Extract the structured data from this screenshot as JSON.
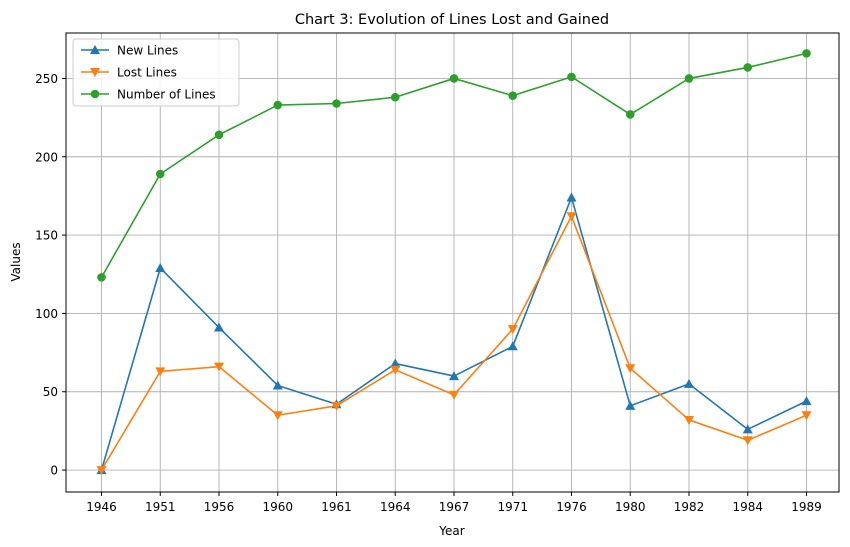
{
  "chart_data": {
    "type": "line",
    "title": "Chart 3: Evolution of Lines Lost and Gained",
    "xlabel": "Year",
    "ylabel": "Values",
    "categories": [
      "1946",
      "1951",
      "1956",
      "1960",
      "1961",
      "1964",
      "1967",
      "1971",
      "1976",
      "1980",
      "1982",
      "1984",
      "1989"
    ],
    "ylim": [
      -14,
      279
    ],
    "yticks": [
      0,
      50,
      100,
      150,
      200,
      250
    ],
    "grid": true,
    "legend_position": "top-left",
    "series": [
      {
        "name": "New Lines",
        "color": "#1f77b4",
        "marker": "triangle-up",
        "values": [
          0,
          129,
          91,
          54,
          42,
          68,
          60,
          79,
          174,
          41,
          55,
          26,
          44
        ]
      },
      {
        "name": "Lost Lines",
        "color": "#ff7f0e",
        "marker": "triangle-down",
        "values": [
          0,
          63,
          66,
          35,
          41,
          64,
          48,
          90,
          162,
          65,
          32,
          19,
          35
        ]
      },
      {
        "name": "Number of Lines",
        "color": "#2ca02c",
        "marker": "circle",
        "values": [
          123,
          189,
          214,
          233,
          234,
          238,
          250,
          239,
          251,
          227,
          250,
          257,
          266
        ]
      }
    ]
  }
}
